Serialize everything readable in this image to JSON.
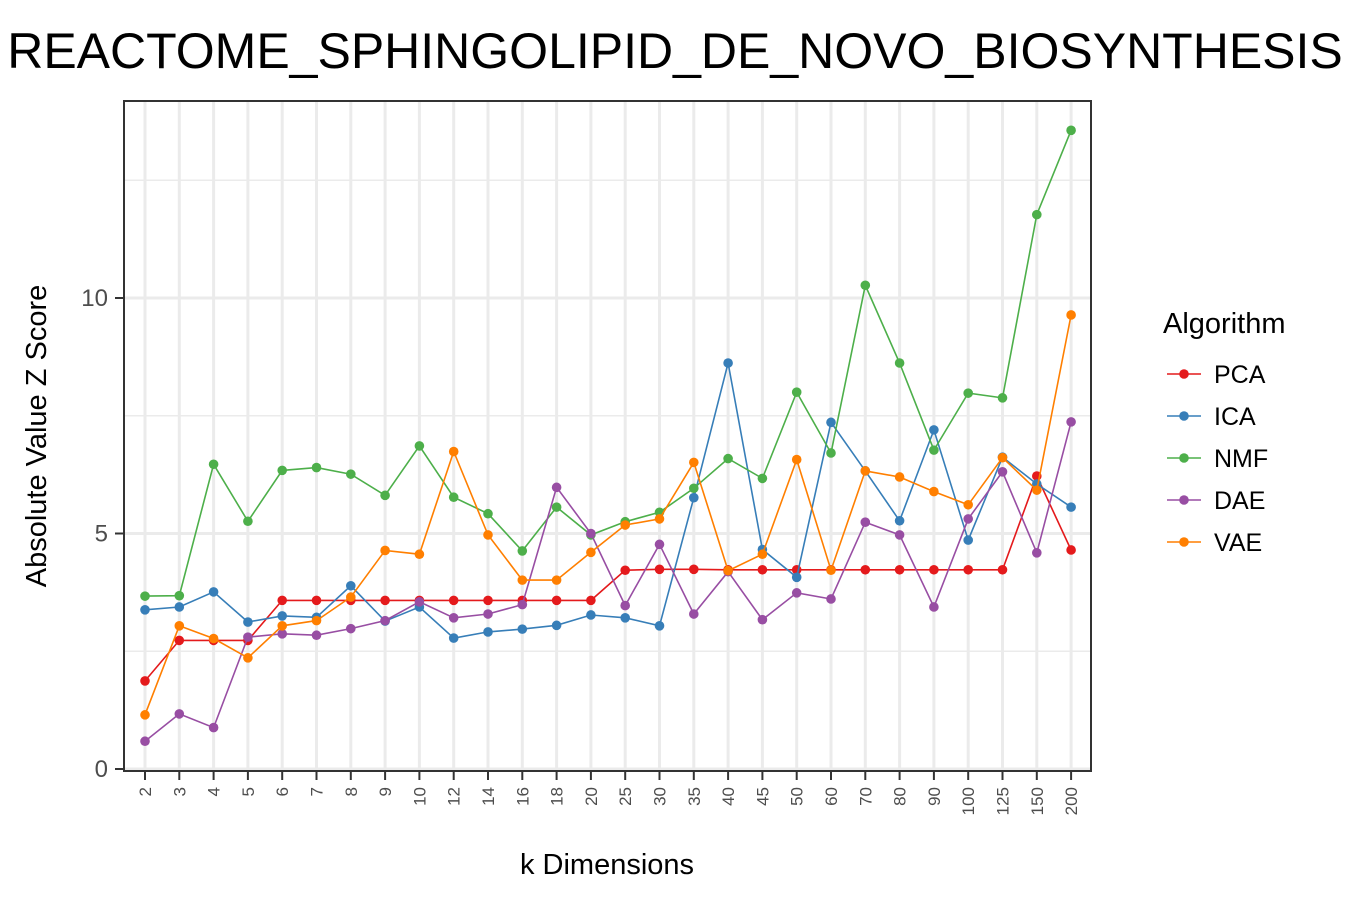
{
  "chart_data": {
    "type": "line",
    "title": "REACTOME_SPHINGOLIPID_DE_NOVO_BIOSYNTHESIS",
    "xlabel": "k Dimensions",
    "ylabel": "Absolute Value Z Score",
    "categories": [
      "2",
      "3",
      "4",
      "5",
      "6",
      "7",
      "8",
      "9",
      "10",
      "12",
      "14",
      "16",
      "18",
      "20",
      "25",
      "30",
      "35",
      "40",
      "45",
      "50",
      "60",
      "70",
      "80",
      "90",
      "100",
      "125",
      "150",
      "200"
    ],
    "ylim": [
      0,
      14
    ],
    "yticks": [
      0,
      5,
      10
    ],
    "grid": true,
    "legend": {
      "title": "Algorithm",
      "position": "right"
    },
    "series": [
      {
        "name": "PCA",
        "color": "#E41A1C",
        "values": [
          1.87,
          2.73,
          2.73,
          2.73,
          3.58,
          3.58,
          3.58,
          3.58,
          3.58,
          3.58,
          3.58,
          3.58,
          3.58,
          3.58,
          4.22,
          4.24,
          4.24,
          4.23,
          4.23,
          4.23,
          4.23,
          4.23,
          4.23,
          4.23,
          4.23,
          4.23,
          6.22,
          4.65
        ]
      },
      {
        "name": "ICA",
        "color": "#377EB8",
        "values": [
          3.38,
          3.44,
          3.76,
          3.12,
          3.25,
          3.22,
          3.89,
          3.14,
          3.44,
          2.78,
          2.91,
          2.97,
          3.05,
          3.27,
          3.21,
          3.04,
          5.76,
          8.62,
          4.66,
          4.07,
          7.36,
          6.33,
          5.27,
          7.2,
          4.86,
          6.62,
          6.05,
          5.56
        ]
      },
      {
        "name": "NMF",
        "color": "#4DAF4A",
        "values": [
          3.67,
          3.68,
          6.47,
          5.26,
          6.34,
          6.4,
          6.26,
          5.81,
          6.86,
          5.77,
          5.42,
          4.63,
          5.56,
          4.97,
          5.25,
          5.45,
          5.96,
          6.59,
          6.17,
          8.0,
          6.71,
          10.27,
          8.62,
          6.77,
          7.98,
          7.88,
          11.77,
          13.56
        ]
      },
      {
        "name": "DAE",
        "color": "#984EA3",
        "values": [
          0.59,
          1.17,
          0.88,
          2.8,
          2.87,
          2.84,
          2.98,
          3.15,
          3.55,
          3.21,
          3.29,
          3.49,
          5.98,
          5.0,
          3.47,
          4.77,
          3.29,
          4.19,
          3.17,
          3.74,
          3.61,
          5.24,
          4.97,
          3.44,
          5.31,
          6.31,
          4.59,
          7.37
        ]
      },
      {
        "name": "VAE",
        "color": "#FF7F00",
        "values": [
          1.15,
          3.04,
          2.77,
          2.36,
          3.04,
          3.15,
          3.65,
          4.64,
          4.56,
          6.74,
          4.97,
          4.01,
          4.01,
          4.6,
          5.18,
          5.31,
          6.51,
          4.21,
          4.56,
          6.57,
          4.22,
          6.33,
          6.2,
          5.89,
          5.61,
          6.61,
          5.92,
          9.64
        ]
      }
    ]
  }
}
